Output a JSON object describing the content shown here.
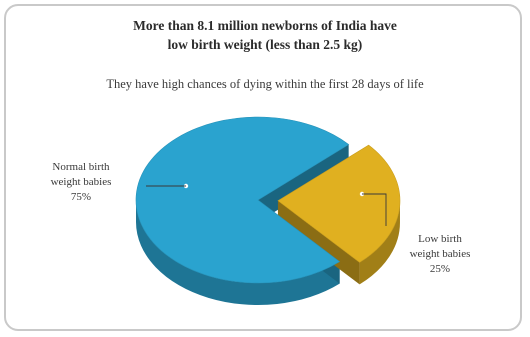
{
  "chart_data": {
    "type": "pie",
    "title": [
      "More than 8.1 million newborns of India have",
      "low birth weight (less than 2.5 kg)"
    ],
    "subtitle": "They have high chances of dying within the first 28 days of life",
    "slices": [
      {
        "label_lines": [
          "Normal birth",
          "weight babies",
          "75%"
        ],
        "value": 75,
        "color": "#2aa3cf"
      },
      {
        "label_lines": [
          "Low birth",
          "weight babies",
          "25%"
        ],
        "value": 25,
        "color": "#e0b020"
      }
    ],
    "style": "3d-exploded",
    "legend": "none"
  }
}
